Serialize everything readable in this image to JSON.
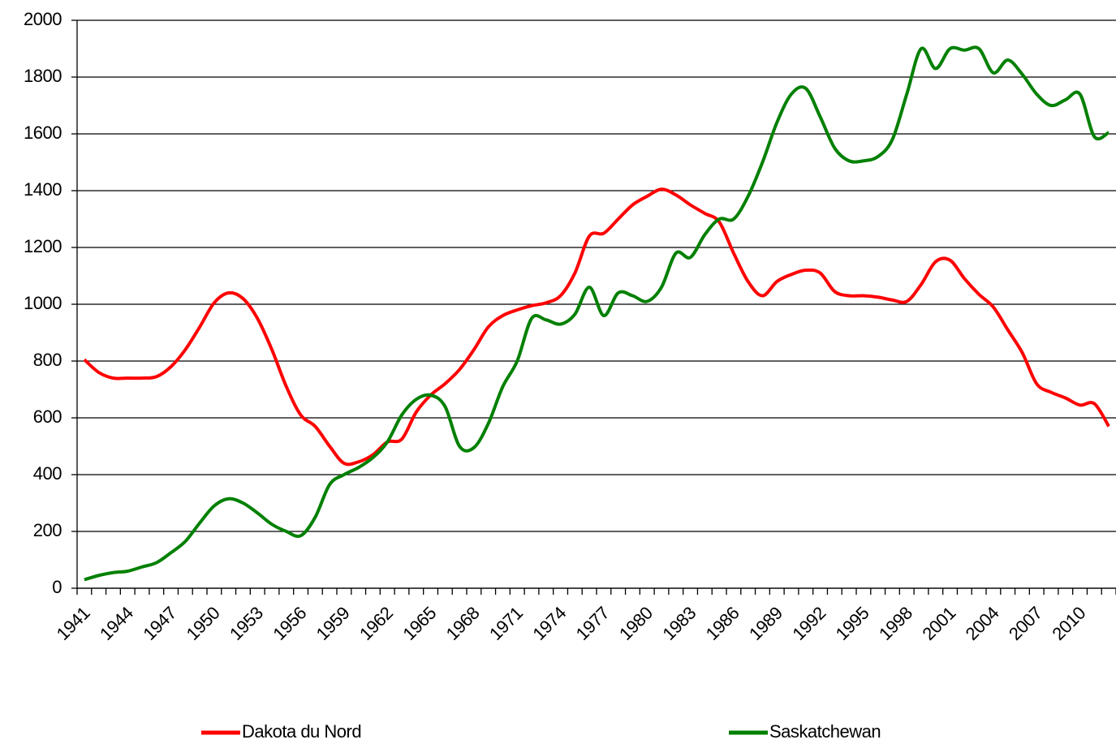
{
  "chart_data": {
    "type": "line",
    "categories": [
      "1941",
      null,
      null,
      "1944",
      null,
      null,
      "1947",
      null,
      null,
      "1950",
      null,
      null,
      "1953",
      null,
      null,
      "1956",
      null,
      null,
      "1959",
      null,
      null,
      "1962",
      null,
      null,
      "1965",
      null,
      null,
      "1968",
      null,
      null,
      "1971",
      null,
      null,
      "1974",
      null,
      null,
      "1977",
      null,
      null,
      "1980",
      null,
      null,
      "1983",
      null,
      null,
      "1986",
      null,
      null,
      "1989",
      null,
      null,
      "1992",
      null,
      null,
      "1995",
      null,
      null,
      "1998",
      null,
      null,
      "2001",
      null,
      null,
      "2004",
      null,
      null,
      "2007",
      null,
      null,
      "2010",
      null,
      null
    ],
    "series": [
      {
        "name": "Dakota du Nord",
        "color": "#ff0000",
        "values": [
          805,
          760,
          740,
          740,
          740,
          745,
          780,
          840,
          920,
          1005,
          1040,
          1020,
          950,
          840,
          710,
          610,
          570,
          500,
          440,
          445,
          470,
          515,
          525,
          620,
          680,
          720,
          770,
          840,
          920,
          960,
          980,
          995,
          1005,
          1030,
          1110,
          1240,
          1250,
          1300,
          1350,
          1380,
          1405,
          1385,
          1350,
          1320,
          1290,
          1180,
          1080,
          1030,
          1080,
          1105,
          1120,
          1110,
          1045,
          1030,
          1030,
          1025,
          1015,
          1010,
          1070,
          1150,
          1155,
          1090,
          1035,
          990,
          910,
          830,
          720,
          690,
          670,
          645,
          650,
          570
        ]
      },
      {
        "name": "Saskatchewan",
        "color": "#008000",
        "values": [
          30,
          45,
          55,
          60,
          75,
          90,
          125,
          165,
          230,
          290,
          315,
          300,
          265,
          225,
          200,
          185,
          250,
          365,
          400,
          425,
          460,
          515,
          610,
          665,
          680,
          640,
          500,
          495,
          580,
          710,
          800,
          950,
          945,
          930,
          965,
          1060,
          960,
          1040,
          1030,
          1010,
          1060,
          1180,
          1165,
          1245,
          1300,
          1300,
          1380,
          1500,
          1640,
          1740,
          1760,
          1660,
          1550,
          1505,
          1505,
          1520,
          1580,
          1740,
          1900,
          1830,
          1900,
          1895,
          1900,
          1815,
          1860,
          1810,
          1740,
          1700,
          1720,
          1740,
          1590,
          1605
        ]
      }
    ],
    "ylim": [
      0,
      2000
    ],
    "yticks": [
      0,
      200,
      400,
      600,
      800,
      1000,
      1200,
      1400,
      1600,
      1800,
      2000
    ],
    "grid": true,
    "legend": "bottom"
  }
}
